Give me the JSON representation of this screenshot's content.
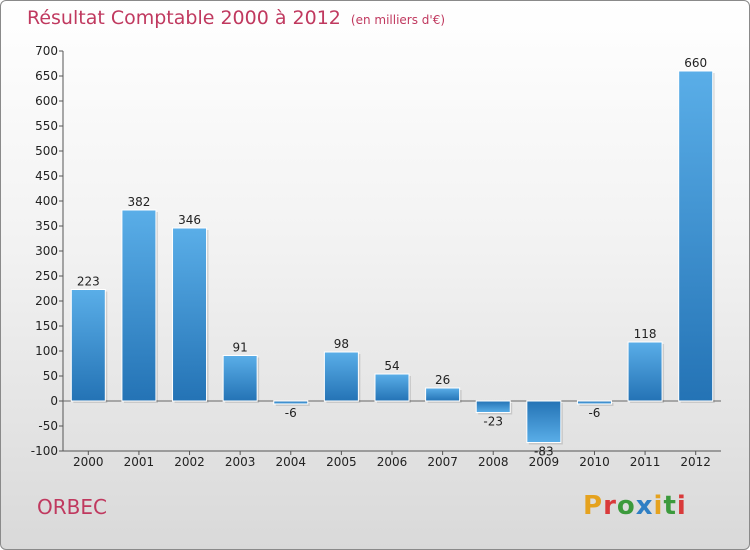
{
  "chart_data": {
    "type": "bar",
    "title": "Résultat Comptable 2000 à 2012",
    "subtitle": "(en milliers d'€)",
    "categories": [
      "2000",
      "2001",
      "2002",
      "2003",
      "2004",
      "2005",
      "2006",
      "2007",
      "2008",
      "2009",
      "2010",
      "2011",
      "2012"
    ],
    "values": [
      223,
      382,
      346,
      91,
      -6,
      98,
      54,
      26,
      -23,
      -83,
      -6,
      118,
      660
    ],
    "value_labels": [
      "223",
      "382",
      "346",
      "91",
      "-6",
      "98",
      "54",
      "26",
      "-23",
      "-83",
      "-6",
      "118",
      "660"
    ],
    "y_ticks": [
      700,
      650,
      600,
      550,
      500,
      450,
      400,
      350,
      300,
      250,
      200,
      150,
      100,
      50,
      0,
      -50,
      -100
    ],
    "ylim": [
      -100,
      700
    ],
    "xlabel": "",
    "ylabel": "",
    "grid": false,
    "bar_color": "#3d93d6",
    "bar_color_dark": "#2a74b8"
  },
  "footer": {
    "commune": "ORBEC",
    "brand": "Proxiti",
    "brand_colors": [
      "#e5a21e",
      "#d93a3a",
      "#3c9a3c",
      "#2f7fc4",
      "#e5a21e",
      "#3c9a3c",
      "#d93a3a"
    ]
  },
  "colors": {
    "title": "#c0395f"
  }
}
